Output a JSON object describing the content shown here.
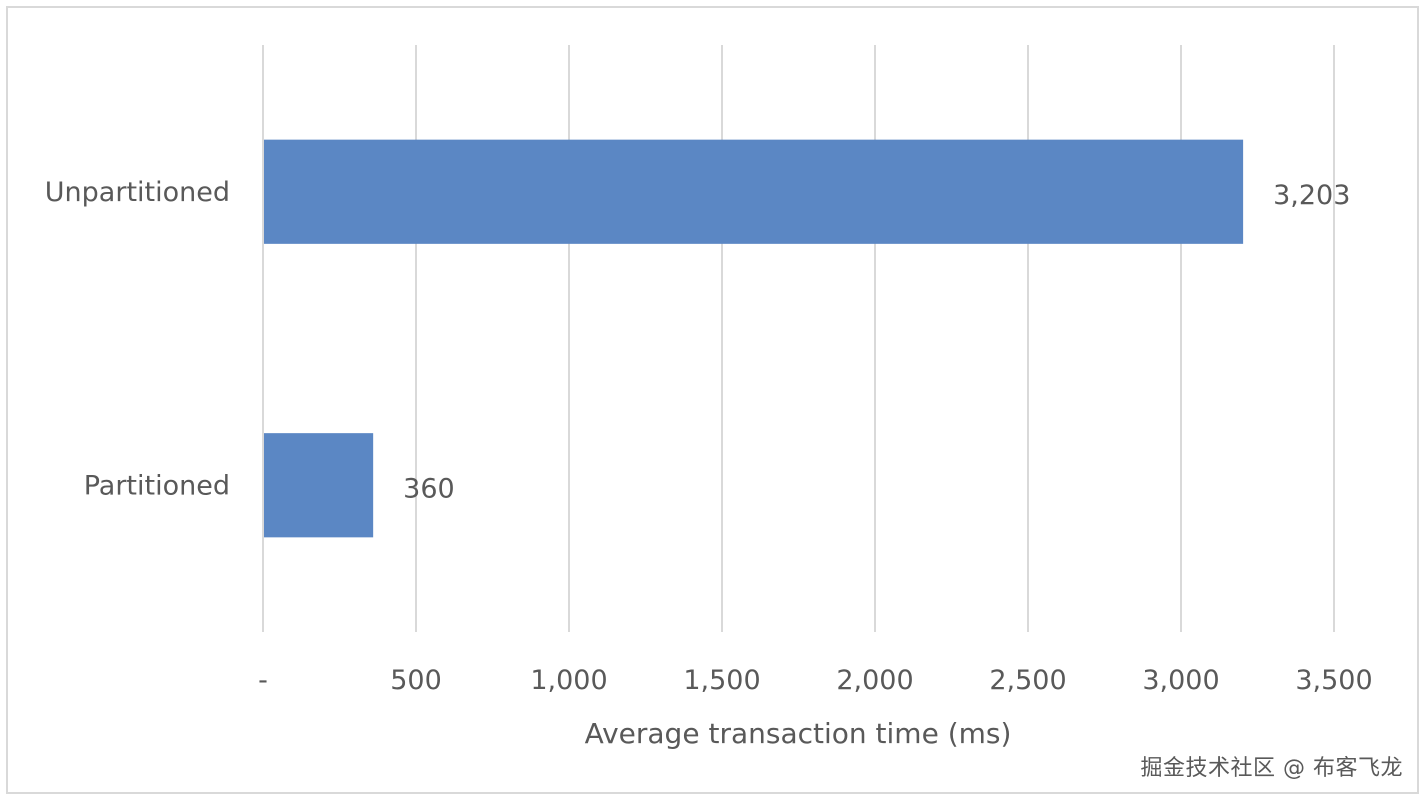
{
  "chart_data": {
    "type": "bar",
    "orientation": "horizontal",
    "categories": [
      "Unpartitioned",
      "Partitioned"
    ],
    "values": [
      3203,
      360
    ],
    "data_labels": [
      "3,203",
      "360"
    ],
    "title": "",
    "xlabel": "Average transaction time (ms)",
    "ylabel": "",
    "xlim": [
      0,
      3500
    ],
    "xticks": [
      0,
      500,
      1000,
      1500,
      2000,
      2500,
      3000,
      3500
    ],
    "xtick_labels": [
      "-",
      "500",
      "1,000",
      "1,500",
      "2,000",
      "2,500",
      "3,000",
      "3,500"
    ],
    "grid": true,
    "legend": "none",
    "bar_color": "#5b87c4",
    "gridline_color": "#d9d9d9",
    "text_color": "#595959"
  },
  "watermark": "掘金技术社区 @ 布客飞龙"
}
